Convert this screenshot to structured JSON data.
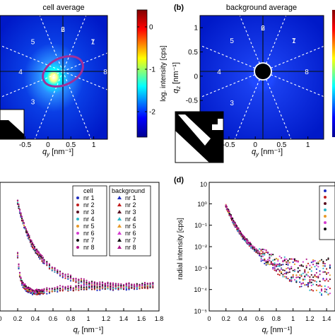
{
  "panels": {
    "a": {
      "title": "cell average",
      "xlabel_main": "q",
      "xlabel_sub": "y",
      "xlabel_unit": " [nm⁻¹]",
      "colorbar_label": "log. intensity [cps]"
    },
    "b": {
      "letter": "(b)",
      "title": "background average",
      "xlabel_main": "q",
      "xlabel_sub": "y",
      "xlabel_unit": " [nm⁻¹]",
      "ylabel_main": "q",
      "ylabel_sub": "z",
      "ylabel_unit": " [nm⁻¹]"
    },
    "c": {
      "xlabel_main": "q",
      "xlabel_sub": "r",
      "xlabel_unit": " [nm⁻¹]",
      "legend_cell_title": "cell",
      "legend_bg_title": "background"
    },
    "d": {
      "letter": "(d)",
      "xlabel_main": "q",
      "xlabel_sub": "r",
      "xlabel_unit": " [nm⁻¹]",
      "ylabel": "radial intensity [cps]"
    }
  },
  "sector_numbers": [
    "1",
    "2",
    "3",
    "4",
    "5",
    "6",
    "7",
    "8"
  ],
  "colors": {
    "sectors": [
      "#1f2dbf",
      "#c21b1b",
      "#5a1020",
      "#2fb8c8",
      "#e89a2a",
      "#d43ccf",
      "#111111",
      "#b0188a"
    ],
    "colormap": [
      "#00008f",
      "#0000ff",
      "#00ffff",
      "#ffff00",
      "#ff0000",
      "#800000"
    ],
    "ellipse": "#a0309a"
  },
  "chart_data": [
    {
      "type": "heatmap",
      "panel": "a",
      "title": "cell average",
      "xlabel": "q_y [nm⁻¹]",
      "xticks": [
        "-0.5",
        "0",
        "0.5",
        "1"
      ],
      "xlim": [
        -1.05,
        1.3
      ],
      "ylim": [
        -1.3,
        1.25
      ],
      "colorbar": {
        "label": "log. intensity [cps]",
        "ticks": [
          "0",
          "-1",
          "-2"
        ],
        "range": [
          -2.6,
          0.4
        ]
      },
      "sector_labels": [
        "1",
        "2",
        "3",
        "4",
        "5",
        "6",
        "7",
        "8"
      ]
    },
    {
      "type": "heatmap",
      "panel": "b",
      "title": "background average",
      "xlabel": "q_y [nm⁻¹]",
      "ylabel": "q_z [nm⁻¹]",
      "xticks": [
        "-0.5",
        "0",
        "0.5",
        "1"
      ],
      "yticks": [
        "1",
        "0.5",
        "0",
        "-0.5"
      ],
      "xlim": [
        -1.05,
        1.3
      ],
      "ylim": [
        -1.3,
        1.25
      ],
      "sector_labels": [
        "1",
        "2",
        "3",
        "4",
        "5",
        "6",
        "7",
        "8"
      ]
    },
    {
      "type": "scatter",
      "panel": "c",
      "xlabel": "q_r [nm⁻¹]",
      "xlim": [
        0,
        1.8
      ],
      "xticks": [
        "0",
        "0.2",
        "0.4",
        "0.6",
        "0.8",
        "1",
        "1.2",
        "1.4",
        "1.6",
        "1.8"
      ],
      "legend": {
        "placement": "top-right",
        "cell": [
          "nr 1",
          "nr 2",
          "nr 3",
          "nr 4",
          "nr 5",
          "nr 6",
          "nr 7",
          "nr 8"
        ],
        "background": [
          "nr 1",
          "nr 2",
          "nr 3",
          "nr 4",
          "nr 5",
          "nr 6",
          "nr 7",
          "nr 8"
        ]
      },
      "ylim": [
        0,
        1
      ],
      "series_groups": {
        "upper": {
          "x": [
            0.2,
            0.25,
            0.3,
            0.35,
            0.4,
            0.5,
            0.6,
            0.7,
            0.8,
            0.9,
            1.0,
            1.1,
            1.2,
            1.3,
            1.4,
            1.5,
            1.6,
            1.7,
            1.76
          ],
          "y": [
            0.83,
            0.7,
            0.6,
            0.52,
            0.46,
            0.37,
            0.31,
            0.27,
            0.24,
            0.22,
            0.2,
            0.19,
            0.19,
            0.18,
            0.18,
            0.18,
            0.18,
            0.18,
            0.19
          ]
        },
        "lower": {
          "x": [
            0.2,
            0.22,
            0.25,
            0.3,
            0.35,
            0.4,
            0.5,
            0.6,
            0.7,
            0.8,
            1.0,
            1.2,
            1.4,
            1.6,
            1.76
          ],
          "y": [
            0.42,
            0.28,
            0.2,
            0.16,
            0.14,
            0.13,
            0.14,
            0.15,
            0.16,
            0.16,
            0.17,
            0.17,
            0.17,
            0.18,
            0.19
          ]
        }
      }
    },
    {
      "type": "scatter",
      "panel": "d",
      "xlabel": "q_r [nm⁻¹]",
      "ylabel": "radial intensity [cps]",
      "yscale": "log",
      "ylim": [
        1e-05,
        10
      ],
      "xlim": [
        0,
        1.5
      ],
      "xticks": [
        "0",
        "0.2",
        "0.4",
        "0.6",
        "0.8",
        "1",
        "1.2",
        "1.4"
      ],
      "yticks": [
        "10⁰",
        "10⁻¹",
        "10⁻²",
        "10⁻³",
        "10⁻⁴",
        "10⁻⁵"
      ],
      "ytick_top": "10",
      "curve": {
        "x": [
          0.2,
          0.25,
          0.3,
          0.4,
          0.5,
          0.6,
          0.7,
          0.8,
          0.9,
          1.0,
          1.1,
          1.2,
          1.3,
          1.4,
          1.45
        ],
        "y": [
          0.8,
          0.3,
          0.12,
          0.03,
          0.011,
          0.005,
          0.0028,
          0.0016,
          0.0011,
          0.0008,
          0.0006,
          0.0005,
          0.0004,
          0.0004,
          0.0004
        ]
      }
    }
  ]
}
